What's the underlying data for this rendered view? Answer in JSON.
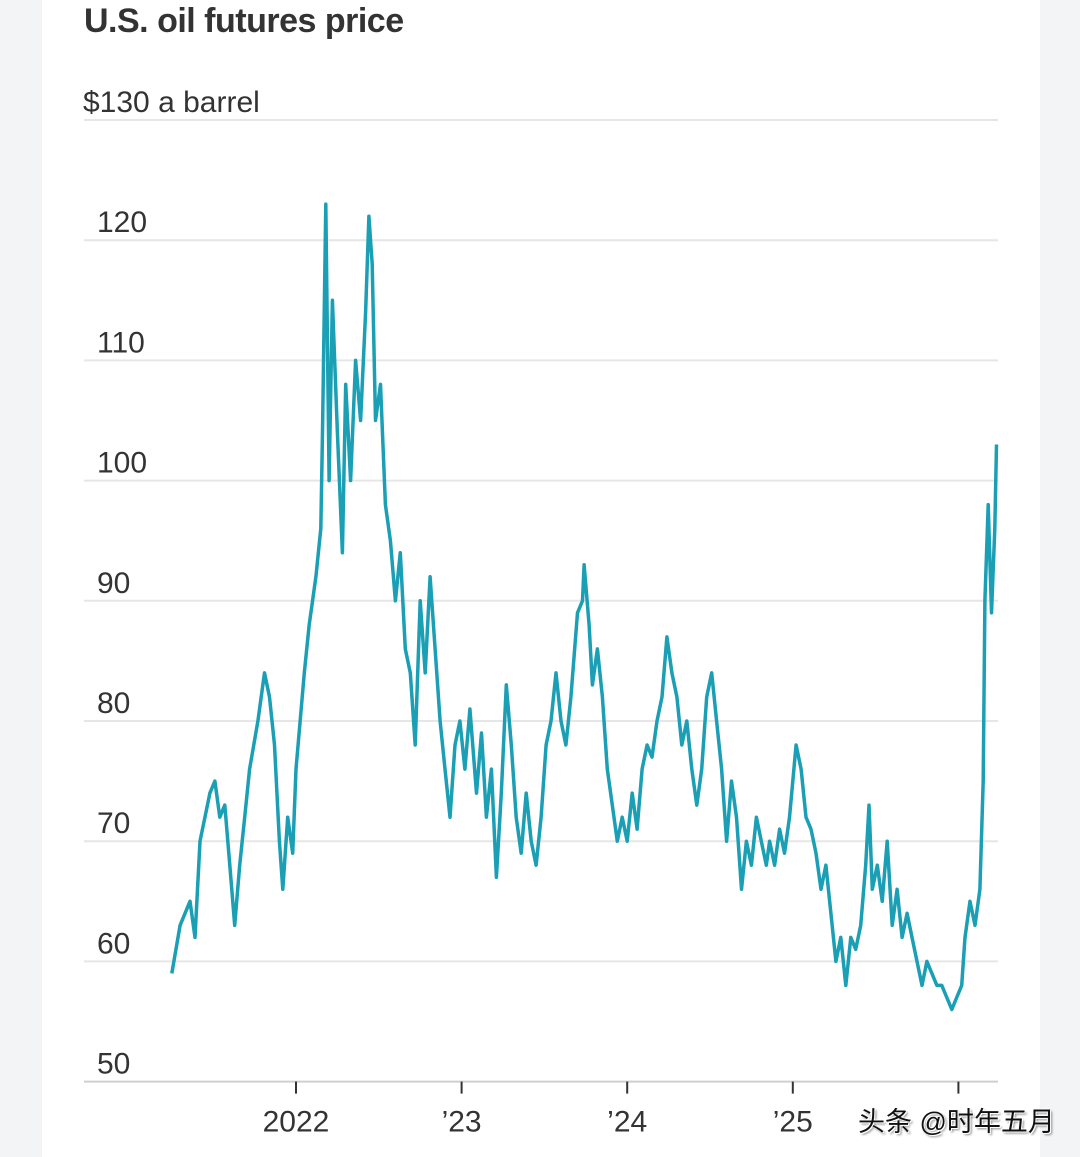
{
  "watermark": "头条 @时年五月",
  "chart_data": {
    "type": "line",
    "title": "U.S. oil futures price",
    "unit_label": "$130 a barrel",
    "ylim": [
      50,
      130
    ],
    "yticks": [
      {
        "value": 130,
        "label": ""
      },
      {
        "value": 120,
        "label": "120"
      },
      {
        "value": 110,
        "label": "110"
      },
      {
        "value": 100,
        "label": "100"
      },
      {
        "value": 90,
        "label": "90"
      },
      {
        "value": 80,
        "label": "80"
      },
      {
        "value": 70,
        "label": "70"
      },
      {
        "value": 60,
        "label": "60"
      },
      {
        "value": 50,
        "label": "50"
      }
    ],
    "xlim": [
      2021.25,
      2026.23
    ],
    "xticks": [
      {
        "value": 2022,
        "label": "2022"
      },
      {
        "value": 2023,
        "label": "’23"
      },
      {
        "value": 2024,
        "label": "’24"
      },
      {
        "value": 2025,
        "label": "’25"
      },
      {
        "value": 2026,
        "label": ""
      }
    ],
    "grid": true,
    "line_color": "#1a9fb5",
    "x": [
      2021.25,
      2021.3,
      2021.36,
      2021.39,
      2021.42,
      2021.48,
      2021.51,
      2021.54,
      2021.57,
      2021.6,
      2021.63,
      2021.66,
      2021.69,
      2021.72,
      2021.77,
      2021.81,
      2021.84,
      2021.87,
      2021.9,
      2021.92,
      2021.95,
      2021.98,
      2022.0,
      2022.05,
      2022.08,
      2022.12,
      2022.15,
      2022.16,
      2022.18,
      2022.2,
      2022.22,
      2022.25,
      2022.28,
      2022.3,
      2022.33,
      2022.36,
      2022.39,
      2022.42,
      2022.44,
      2022.46,
      2022.48,
      2022.51,
      2022.54,
      2022.57,
      2022.6,
      2022.63,
      2022.66,
      2022.69,
      2022.72,
      2022.75,
      2022.78,
      2022.81,
      2022.84,
      2022.87,
      2022.9,
      2022.93,
      2022.96,
      2022.99,
      2023.02,
      2023.05,
      2023.09,
      2023.12,
      2023.15,
      2023.18,
      2023.21,
      2023.24,
      2023.27,
      2023.3,
      2023.33,
      2023.36,
      2023.39,
      2023.42,
      2023.45,
      2023.48,
      2023.51,
      2023.54,
      2023.57,
      2023.6,
      2023.63,
      2023.66,
      2023.7,
      2023.73,
      2023.74,
      2023.77,
      2023.79,
      2023.82,
      2023.85,
      2023.88,
      2023.91,
      2023.94,
      2023.97,
      2024.0,
      2024.03,
      2024.06,
      2024.09,
      2024.12,
      2024.15,
      2024.18,
      2024.21,
      2024.24,
      2024.27,
      2024.3,
      2024.33,
      2024.36,
      2024.39,
      2024.42,
      2024.45,
      2024.48,
      2024.51,
      2024.54,
      2024.57,
      2024.6,
      2024.63,
      2024.66,
      2024.69,
      2024.72,
      2024.75,
      2024.78,
      2024.81,
      2024.84,
      2024.86,
      2024.89,
      2024.92,
      2024.95,
      2024.98,
      2025.02,
      2025.05,
      2025.08,
      2025.11,
      2025.14,
      2025.17,
      2025.2,
      2025.23,
      2025.26,
      2025.29,
      2025.32,
      2025.35,
      2025.38,
      2025.41,
      2025.44,
      2025.46,
      2025.48,
      2025.51,
      2025.54,
      2025.57,
      2025.6,
      2025.63,
      2025.66,
      2025.69,
      2025.72,
      2025.75,
      2025.78,
      2025.81,
      2025.84,
      2025.87,
      2025.9,
      2025.93,
      2025.96,
      2025.99,
      2026.02,
      2026.04,
      2026.07,
      2026.1,
      2026.13,
      2026.15,
      2026.16,
      2026.18,
      2026.2,
      2026.22,
      2026.23
    ],
    "values": [
      59,
      63,
      65,
      62,
      70,
      74,
      75,
      72,
      73,
      68,
      63,
      68,
      72,
      76,
      80,
      84,
      82,
      78,
      70,
      66,
      72,
      69,
      76,
      84,
      88,
      92,
      96,
      104,
      123,
      100,
      115,
      104,
      94,
      108,
      100,
      110,
      105,
      114,
      122,
      118,
      105,
      108,
      98,
      95,
      90,
      94,
      86,
      84,
      78,
      90,
      84,
      92,
      86,
      80,
      76,
      72,
      78,
      80,
      76,
      81,
      74,
      79,
      72,
      76,
      67,
      74,
      83,
      78,
      72,
      69,
      74,
      70,
      68,
      72,
      78,
      80,
      84,
      80,
      78,
      82,
      89,
      90,
      93,
      88,
      83,
      86,
      82,
      76,
      73,
      70,
      72,
      70,
      74,
      71,
      76,
      78,
      77,
      80,
      82,
      87,
      84,
      82,
      78,
      80,
      76,
      73,
      76,
      82,
      84,
      80,
      76,
      70,
      75,
      72,
      66,
      70,
      68,
      72,
      70,
      68,
      70,
      68,
      71,
      69,
      72,
      78,
      76,
      72,
      71,
      69,
      66,
      68,
      64,
      60,
      62,
      58,
      62,
      61,
      63,
      68,
      73,
      66,
      68,
      65,
      70,
      63,
      66,
      62,
      64,
      62,
      60,
      58,
      60,
      59,
      58,
      58,
      57,
      56,
      57,
      58,
      62,
      65,
      63,
      66,
      75,
      90,
      98,
      89,
      96,
      103
    ]
  }
}
